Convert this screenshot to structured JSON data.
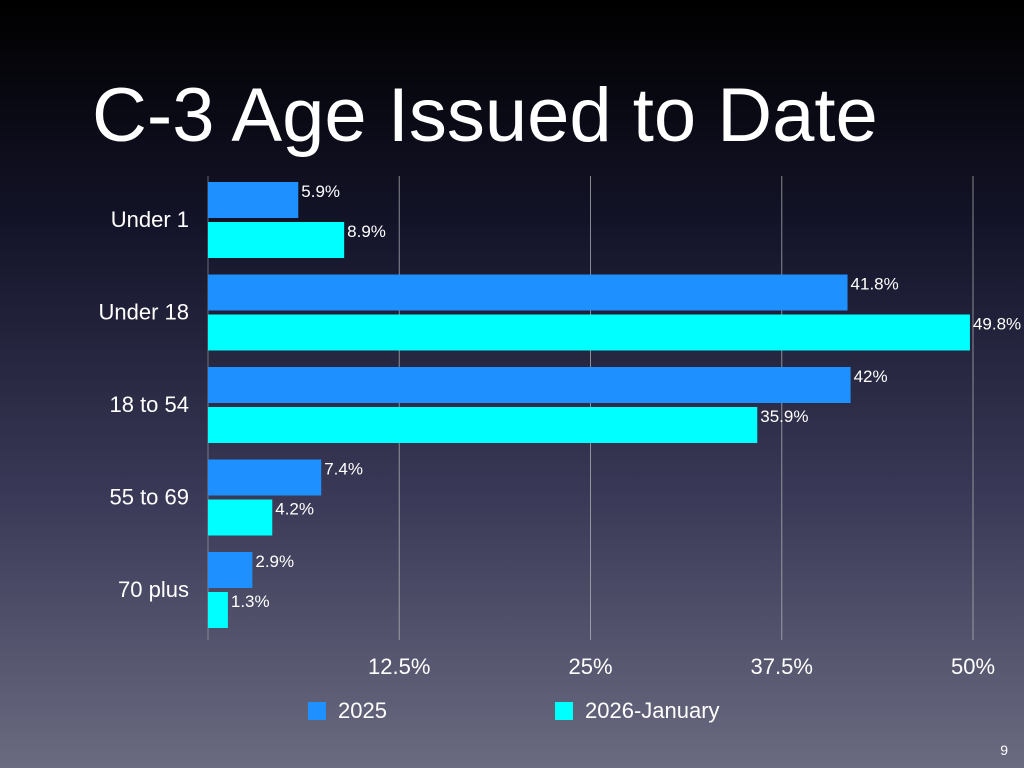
{
  "slide": {
    "title": "C-3 Age Issued to Date",
    "page_number": "9"
  },
  "colors": {
    "series_2025": "#1e90ff",
    "series_2026": "#00ffff",
    "grid": "#bbbbbb",
    "text": "#ffffff"
  },
  "chart_data": {
    "type": "bar",
    "orientation": "horizontal",
    "title": "C-3 Age Issued to Date",
    "categories": [
      "Under 1",
      "Under 18",
      "18 to 54",
      "55 to 69",
      "70 plus"
    ],
    "series": [
      {
        "name": "2025",
        "values": [
          5.9,
          41.8,
          42,
          7.4,
          2.9
        ],
        "labels": [
          "5.9%",
          "41.8%",
          "42%",
          "7.4%",
          "2.9%"
        ]
      },
      {
        "name": "2026-January",
        "values": [
          8.9,
          49.8,
          35.9,
          4.2,
          1.3
        ],
        "labels": [
          "8.9%",
          "49.8%",
          "35.9%",
          "4.2%",
          "1.3%"
        ]
      }
    ],
    "xlim": [
      0,
      50
    ],
    "xticks": [
      12.5,
      25,
      37.5,
      50
    ],
    "xtick_labels": [
      "12.5%",
      "25%",
      "37.5%",
      "50%"
    ],
    "xlabel": "",
    "ylabel": "",
    "grid": true,
    "legend": "bottom"
  }
}
